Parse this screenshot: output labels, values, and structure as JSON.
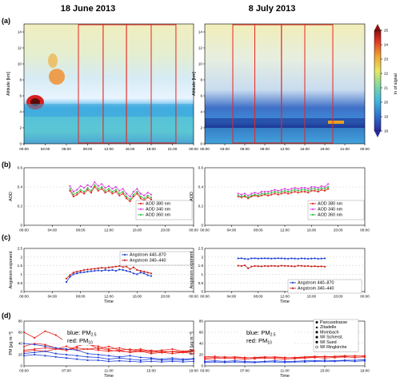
{
  "colors": {
    "red": "#e8261f",
    "magenta": "#e040e0",
    "green": "#37c24a",
    "blue": "#1f3fd8",
    "darkred": "#c8201a"
  },
  "chart_data": {
    "type": "multi-panel",
    "columns": [
      {
        "title": "18 June 2013"
      },
      {
        "title": "8 July 2013"
      }
    ],
    "panels": [
      {
        "id": "a",
        "label": "(a)",
        "type": "heatmap",
        "ylabel": "Altitude [km]",
        "ylim": [
          0,
          15
        ],
        "yticks": [
          "0",
          "2",
          "4",
          "6",
          "8",
          "10",
          "12",
          "14"
        ],
        "xticks": [
          "00:00",
          "03:00",
          "06:00",
          "09:00",
          "12:00",
          "15:00",
          "18:00",
          "21:00",
          "00:00"
        ],
        "colorbar": {
          "label": "ln of signal",
          "ticks": [
            "25",
            "24",
            "23",
            "22",
            "21",
            "20",
            "19",
            "18"
          ],
          "range": [
            18,
            25
          ]
        },
        "left": {
          "windows_hours": [
            [
              7.7,
              11.2
            ],
            [
              11.2,
              14.5
            ],
            [
              14.5,
              18.0
            ],
            [
              18.0,
              21.5
            ]
          ]
        },
        "right": {
          "windows_hours": [
            [
              4.2,
              7.5
            ],
            [
              7.5,
              11.5
            ],
            [
              11.5,
              15.0
            ],
            [
              15.0,
              19.2
            ]
          ]
        }
      },
      {
        "id": "b",
        "label": "(b)",
        "type": "line",
        "ylabel": "AOD",
        "ylim": [
          0,
          0.6
        ],
        "yticks": [
          "0",
          "0.2",
          "0.4",
          "0.6"
        ],
        "xticks": [
          "00:00",
          "04:00",
          "08:00",
          "12:00",
          "16:00",
          "20:00",
          "00:00"
        ],
        "xlim": [
          0,
          24
        ],
        "legend_entries": [
          "AOD 380 nm",
          "AOD 340 nm",
          "AOD 360 nm"
        ],
        "legend_colors": [
          "#e8261f",
          "#e040e0",
          "#37c24a"
        ],
        "left": {
          "x": [
            6.5,
            7.0,
            7.5,
            8.0,
            8.5,
            9.0,
            9.5,
            10.0,
            10.5,
            11.0,
            11.5,
            12.0,
            12.5,
            13.0,
            13.5,
            14.0,
            14.5,
            15.0,
            15.5,
            16.0,
            16.5,
            17.0,
            17.5,
            18.0
          ],
          "series": [
            {
              "values": [
                0.36,
                0.3,
                0.32,
                0.35,
                0.33,
                0.37,
                0.34,
                0.4,
                0.36,
                0.38,
                0.34,
                0.36,
                0.33,
                0.35,
                0.31,
                0.33,
                0.28,
                0.25,
                0.3,
                0.33,
                0.28,
                0.26,
                0.29,
                0.27
              ]
            },
            {
              "values": [
                0.41,
                0.35,
                0.37,
                0.41,
                0.39,
                0.42,
                0.4,
                0.45,
                0.41,
                0.43,
                0.39,
                0.41,
                0.38,
                0.4,
                0.36,
                0.38,
                0.33,
                0.3,
                0.35,
                0.38,
                0.33,
                0.31,
                0.34,
                0.32
              ]
            },
            {
              "values": [
                0.38,
                0.32,
                0.34,
                0.37,
                0.35,
                0.39,
                0.36,
                0.42,
                0.38,
                0.4,
                0.36,
                0.38,
                0.35,
                0.37,
                0.33,
                0.35,
                0.3,
                0.27,
                0.32,
                0.35,
                0.3,
                0.28,
                0.31,
                0.29
              ]
            }
          ]
        },
        "right": {
          "x": [
            5.0,
            5.5,
            6.0,
            6.5,
            7.0,
            7.5,
            8.0,
            8.5,
            9.0,
            9.5,
            10.0,
            10.5,
            11.0,
            11.5,
            12.0,
            12.5,
            13.0,
            13.5,
            14.0,
            14.5,
            15.0,
            15.5,
            16.0,
            16.5,
            17.0,
            17.5,
            18.0,
            18.5
          ],
          "series": [
            {
              "values": [
                0.3,
                0.29,
                0.3,
                0.28,
                0.3,
                0.31,
                0.3,
                0.31,
                0.32,
                0.31,
                0.32,
                0.33,
                0.32,
                0.33,
                0.34,
                0.33,
                0.34,
                0.35,
                0.34,
                0.35,
                0.35,
                0.34,
                0.36,
                0.36,
                0.35,
                0.37,
                0.36,
                0.38
              ]
            },
            {
              "values": [
                0.33,
                0.32,
                0.33,
                0.31,
                0.33,
                0.34,
                0.33,
                0.35,
                0.35,
                0.35,
                0.36,
                0.37,
                0.36,
                0.37,
                0.38,
                0.37,
                0.38,
                0.39,
                0.38,
                0.39,
                0.39,
                0.38,
                0.4,
                0.4,
                0.39,
                0.41,
                0.4,
                0.43
              ]
            },
            {
              "values": [
                0.31,
                0.3,
                0.31,
                0.29,
                0.31,
                0.32,
                0.31,
                0.33,
                0.33,
                0.33,
                0.34,
                0.35,
                0.34,
                0.35,
                0.36,
                0.35,
                0.36,
                0.37,
                0.36,
                0.37,
                0.37,
                0.36,
                0.38,
                0.38,
                0.37,
                0.39,
                0.38,
                0.4
              ]
            }
          ]
        }
      },
      {
        "id": "c",
        "label": "(c)",
        "type": "line",
        "ylabel": "Angstrom exponent",
        "xlabel": "Time",
        "ylim": [
          0,
          2.5
        ],
        "yticks": [
          "0",
          "0.5",
          "1",
          "1.5",
          "2",
          "2.5"
        ],
        "xticks": [
          "00:00",
          "04:00",
          "08:00",
          "12:00",
          "16:00",
          "20:00",
          "00:00"
        ],
        "xlim": [
          0,
          24
        ],
        "legend_entries": [
          "Angstrom 440–870",
          "Angstrom 340–440"
        ],
        "legend_colors": [
          "#1f3fd8",
          "#c8201a"
        ],
        "left": {
          "x": [
            6.0,
            6.5,
            7.0,
            7.5,
            8.0,
            8.5,
            9.0,
            9.5,
            10.0,
            10.5,
            11.0,
            11.5,
            12.0,
            12.5,
            13.0,
            13.5,
            14.0,
            14.5,
            15.0,
            15.5,
            16.0,
            16.5,
            17.0,
            17.5,
            18.0
          ],
          "series": [
            {
              "values": [
                0.55,
                0.85,
                1.0,
                1.05,
                1.1,
                1.12,
                1.15,
                1.18,
                1.2,
                1.22,
                1.2,
                1.25,
                1.22,
                1.25,
                1.2,
                1.28,
                1.25,
                1.2,
                1.15,
                1.05,
                1.0,
                1.1,
                1.05,
                0.95,
                0.9
              ]
            },
            {
              "values": [
                0.75,
                0.95,
                1.1,
                1.15,
                1.2,
                1.25,
                1.28,
                1.3,
                1.32,
                1.35,
                1.38,
                1.36,
                1.4,
                1.42,
                1.45,
                1.48,
                1.42,
                1.45,
                1.3,
                1.4,
                1.25,
                1.2,
                1.15,
                1.1,
                1.05
              ]
            }
          ]
        },
        "right": {
          "x": [
            5.0,
            5.5,
            6.0,
            6.5,
            7.0,
            7.5,
            8.0,
            8.5,
            9.0,
            9.5,
            10.0,
            10.5,
            11.0,
            11.5,
            12.0,
            12.5,
            13.0,
            13.5,
            14.0,
            14.5,
            15.0,
            15.5,
            16.0,
            16.5,
            17.0,
            17.5,
            18.0
          ],
          "series": [
            {
              "values": [
                1.92,
                1.93,
                1.9,
                1.88,
                1.92,
                1.93,
                1.91,
                1.92,
                1.93,
                1.92,
                1.91,
                1.92,
                1.93,
                1.92,
                1.91,
                1.9,
                1.92,
                1.91,
                1.9,
                1.92,
                1.91,
                1.9,
                1.91,
                1.92,
                1.9,
                1.91,
                1.92
              ]
            },
            {
              "values": [
                1.5,
                1.48,
                1.52,
                1.35,
                1.45,
                1.48,
                1.47,
                1.46,
                1.48,
                1.47,
                1.49,
                1.48,
                1.47,
                1.5,
                1.49,
                1.48,
                1.47,
                1.46,
                1.5,
                1.49,
                1.47,
                1.48,
                1.46,
                1.47,
                1.45,
                1.46,
                1.44
              ]
            }
          ]
        }
      },
      {
        "id": "d",
        "label": "(d)",
        "type": "line",
        "ylabel": "PM [µg m⁻³]",
        "xlabel": "Time",
        "ylim": [
          0,
          80
        ],
        "yticks": [
          "0",
          "20",
          "40",
          "60",
          "80"
        ],
        "xticks": [
          "03:00",
          "07:00",
          "11:00",
          "15:00",
          "19:00"
        ],
        "xlim": [
          3,
          19
        ],
        "annotation": {
          "blue_label": "blue: PM",
          "blue_sub": "2.5",
          "red_label": "red: PM",
          "red_sub": "10"
        },
        "legend_entries": [
          "Parcusstrasse",
          "Zitadelle",
          "Mombach",
          "WI Schierst.",
          "WI Sued",
          "WI Ringkirche"
        ],
        "left": {
          "x": [
            3,
            4,
            5,
            6,
            7,
            8,
            9,
            10,
            11,
            12,
            13,
            14,
            15,
            16,
            17,
            18,
            19
          ],
          "series": [
            {
              "color": "#e8261f",
              "values": [
                60,
                50,
                62,
                55,
                42,
                48,
                38,
                35,
                30,
                32,
                28,
                30,
                26,
                28,
                30,
                26,
                28
              ]
            },
            {
              "color": "#e8261f",
              "values": [
                35,
                40,
                38,
                32,
                28,
                35,
                40,
                30,
                35,
                28,
                30,
                26,
                28,
                24,
                26,
                25,
                27
              ]
            },
            {
              "color": "#e8261f",
              "values": [
                28,
                30,
                32,
                30,
                35,
                28,
                30,
                32,
                28,
                26,
                25,
                28,
                24,
                26,
                25,
                24,
                26
              ]
            },
            {
              "color": "#e8261f",
              "values": [
                25,
                28,
                26,
                30,
                28,
                32,
                30,
                28,
                26,
                28,
                24,
                26,
                22,
                24,
                22,
                24,
                22
              ]
            },
            {
              "color": "#1f3fd8",
              "values": [
                40,
                38,
                35,
                32,
                30,
                28,
                22,
                20,
                18,
                16,
                18,
                15,
                14,
                12,
                14,
                12,
                13
              ]
            },
            {
              "color": "#1f3fd8",
              "values": [
                22,
                24,
                26,
                22,
                20,
                18,
                16,
                15,
                12,
                14,
                12,
                10,
                12,
                10,
                11,
                10,
                12
              ]
            },
            {
              "color": "#1f3fd8",
              "values": [
                18,
                20,
                18,
                16,
                14,
                12,
                10,
                10,
                8,
                9,
                8,
                7,
                8,
                7,
                8,
                7,
                8
              ]
            }
          ]
        },
        "right": {
          "x": [
            3,
            4,
            5,
            6,
            7,
            8,
            9,
            10,
            11,
            12,
            13,
            14,
            15,
            16,
            17,
            18,
            19
          ],
          "series": [
            {
              "color": "#e8261f",
              "values": [
                14,
                15,
                16,
                15,
                14,
                15,
                16,
                15,
                14,
                15,
                16,
                17,
                16,
                17,
                18,
                17,
                18
              ]
            },
            {
              "color": "#e8261f",
              "values": [
                12,
                13,
                14,
                13,
                12,
                13,
                14,
                13,
                12,
                13,
                14,
                15,
                14,
                15,
                16,
                15,
                16
              ]
            },
            {
              "color": "#e8261f",
              "values": [
                16,
                17,
                15,
                16,
                15,
                14,
                15,
                16,
                15,
                14,
                15,
                16,
                17,
                16,
                17,
                18,
                17
              ]
            },
            {
              "color": "#1f3fd8",
              "values": [
                8,
                9,
                8,
                9,
                8,
                7,
                8,
                9,
                8,
                8,
                9,
                9,
                10,
                9,
                10,
                10,
                11
              ]
            },
            {
              "color": "#1f3fd8",
              "values": [
                6,
                7,
                6,
                7,
                6,
                6,
                7,
                7,
                6,
                7,
                7,
                8,
                8,
                8,
                9,
                8,
                9
              ]
            }
          ]
        }
      }
    ]
  }
}
